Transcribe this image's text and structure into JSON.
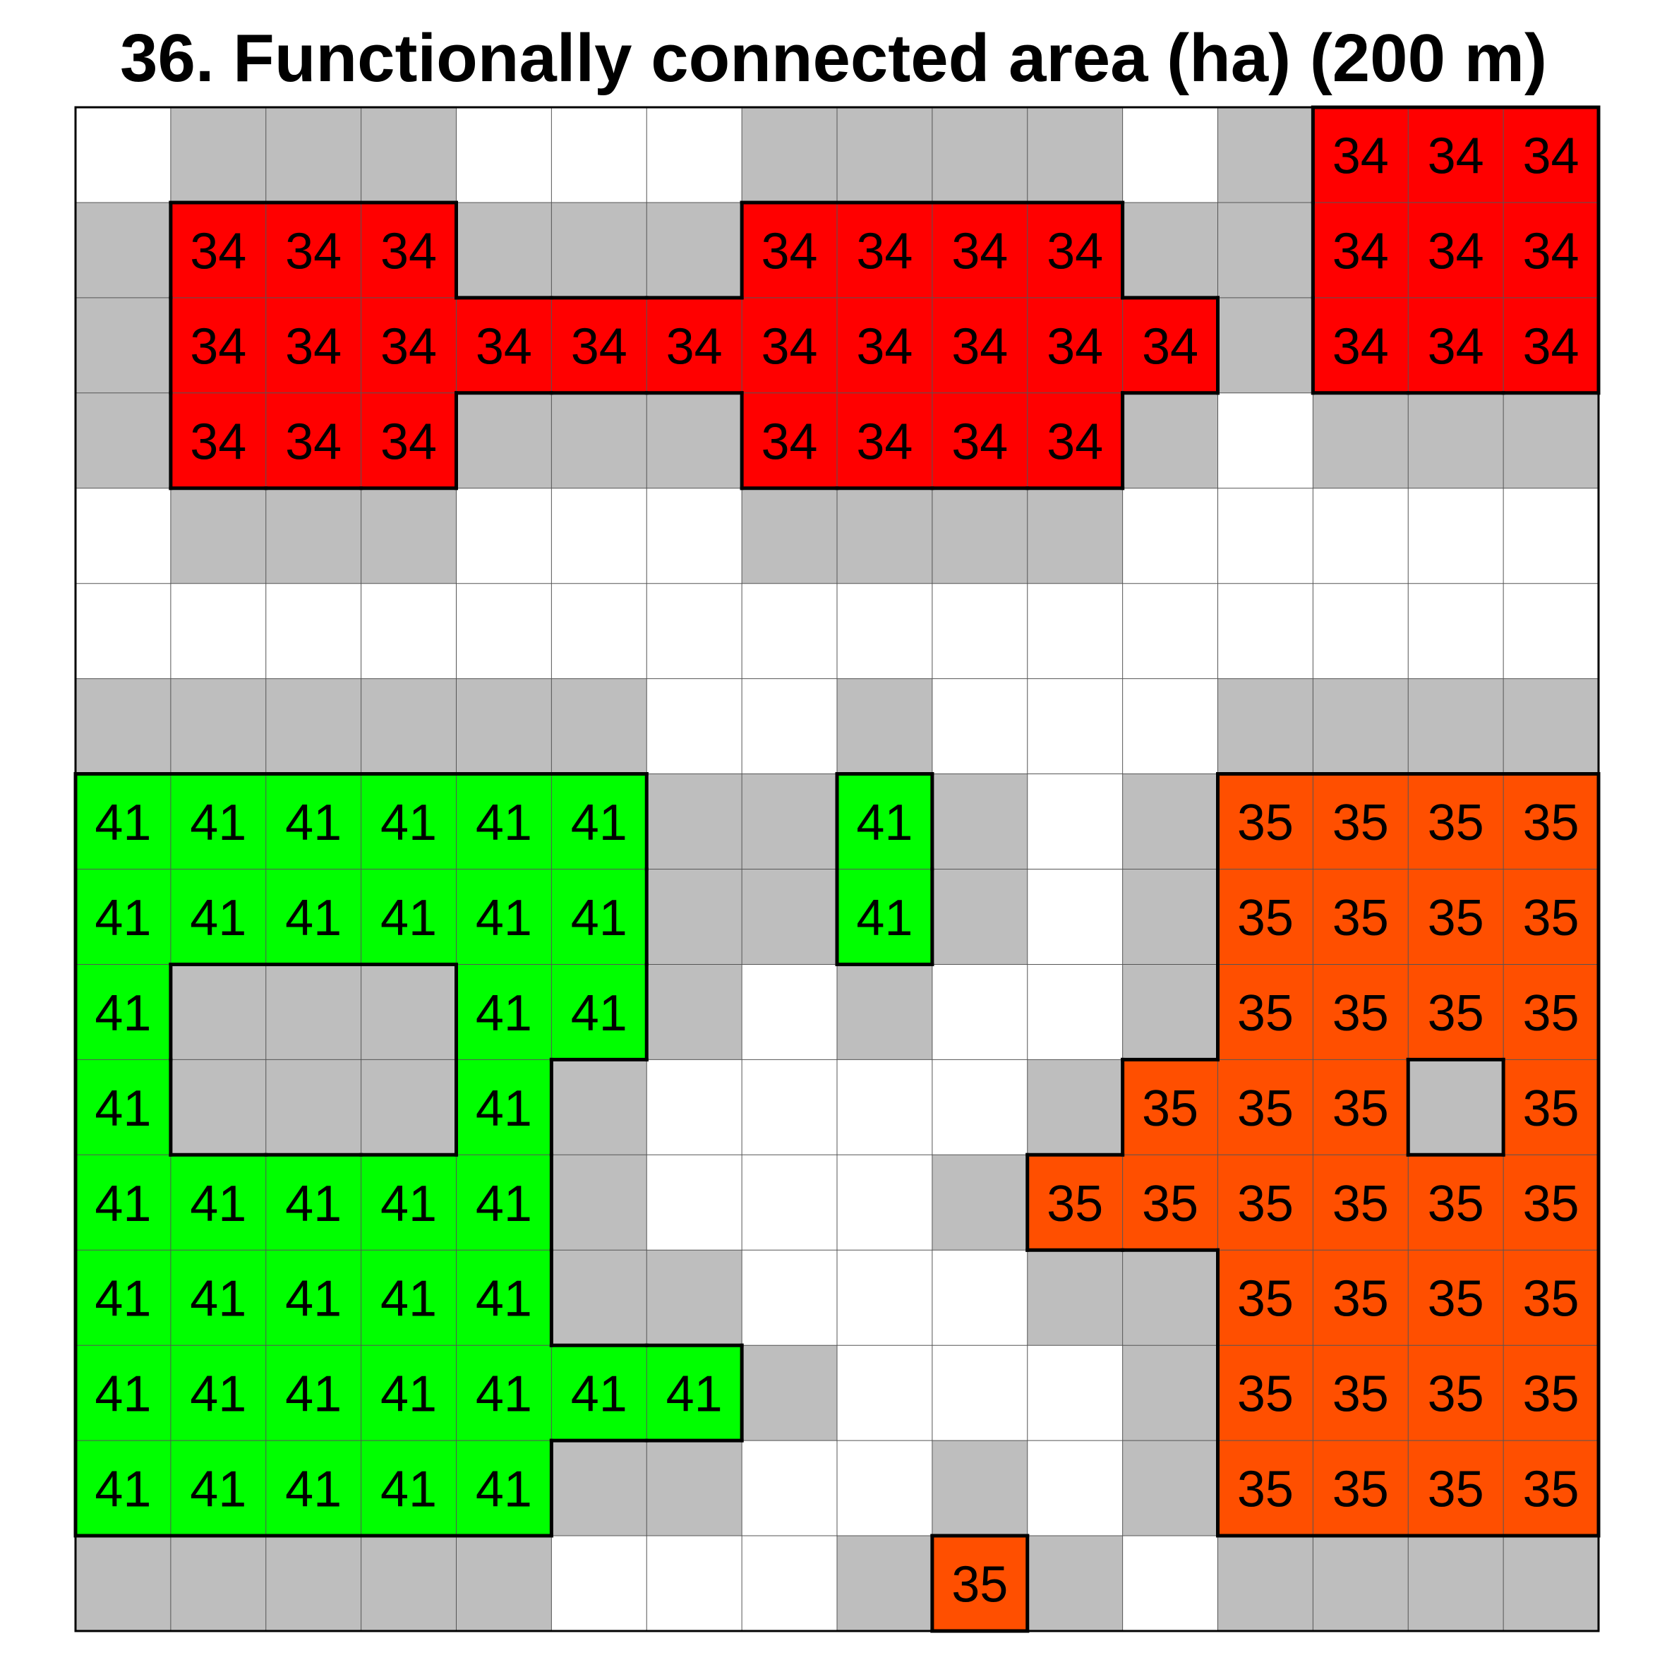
{
  "chart_data": {
    "type": "heatmap",
    "title": "36. Functionally connected area (ha) (200 m)",
    "rows": 16,
    "cols": 16,
    "palette": {
      "0": "#ffffff",
      "1": "#bebebe",
      "34": "#ff0000",
      "35": "#ff4f00",
      "41": "#00ff00"
    },
    "grid": [
      [
        0,
        1,
        1,
        1,
        0,
        0,
        0,
        1,
        1,
        1,
        1,
        0,
        1,
        34,
        34,
        34
      ],
      [
        1,
        34,
        34,
        34,
        1,
        1,
        1,
        34,
        34,
        34,
        34,
        1,
        1,
        34,
        34,
        34
      ],
      [
        1,
        34,
        34,
        34,
        34,
        34,
        34,
        34,
        34,
        34,
        34,
        34,
        1,
        34,
        34,
        34
      ],
      [
        1,
        34,
        34,
        34,
        1,
        1,
        1,
        34,
        34,
        34,
        34,
        1,
        0,
        1,
        1,
        1
      ],
      [
        0,
        1,
        1,
        1,
        0,
        0,
        0,
        1,
        1,
        1,
        1,
        0,
        0,
        0,
        0,
        0
      ],
      [
        0,
        0,
        0,
        0,
        0,
        0,
        0,
        0,
        0,
        0,
        0,
        0,
        0,
        0,
        0,
        0
      ],
      [
        1,
        1,
        1,
        1,
        1,
        1,
        0,
        0,
        1,
        0,
        0,
        0,
        1,
        1,
        1,
        1
      ],
      [
        41,
        41,
        41,
        41,
        41,
        41,
        1,
        1,
        41,
        1,
        0,
        1,
        35,
        35,
        35,
        35
      ],
      [
        41,
        41,
        41,
        41,
        41,
        41,
        1,
        1,
        41,
        1,
        0,
        1,
        35,
        35,
        35,
        35
      ],
      [
        41,
        1,
        1,
        1,
        41,
        41,
        1,
        0,
        1,
        0,
        0,
        1,
        35,
        35,
        35,
        35
      ],
      [
        41,
        1,
        1,
        1,
        41,
        1,
        0,
        0,
        0,
        0,
        1,
        35,
        35,
        35,
        1,
        35
      ],
      [
        41,
        41,
        41,
        41,
        41,
        1,
        0,
        0,
        0,
        1,
        35,
        35,
        35,
        35,
        35,
        35
      ],
      [
        41,
        41,
        41,
        41,
        41,
        1,
        1,
        0,
        0,
        0,
        1,
        1,
        35,
        35,
        35,
        35
      ],
      [
        41,
        41,
        41,
        41,
        41,
        41,
        41,
        1,
        0,
        0,
        0,
        1,
        35,
        35,
        35,
        35
      ],
      [
        41,
        41,
        41,
        41,
        41,
        1,
        1,
        0,
        0,
        1,
        0,
        1,
        35,
        35,
        35,
        35
      ],
      [
        1,
        1,
        1,
        1,
        1,
        0,
        0,
        0,
        1,
        35,
        1,
        0,
        1,
        1,
        1,
        1
      ]
    ]
  }
}
